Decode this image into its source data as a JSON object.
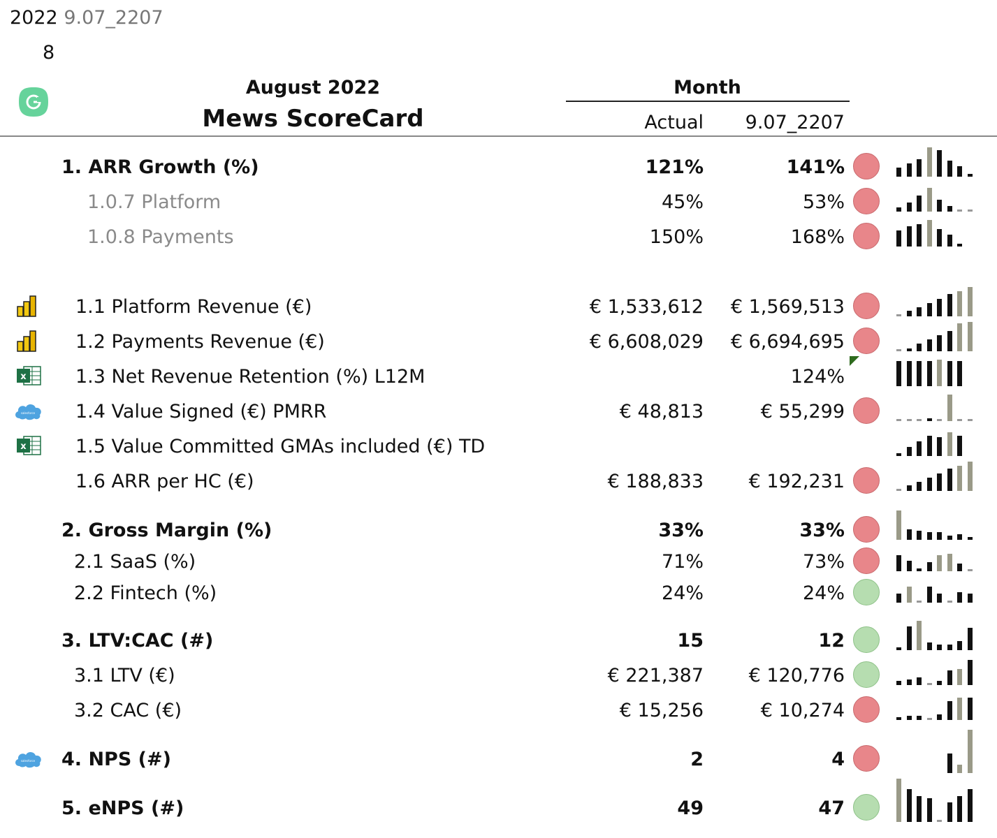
{
  "header": {
    "year": "2022",
    "version": "9.07_2207",
    "page_number": "8",
    "period": "August 2022",
    "title": "Mews ScoreCard",
    "group_label": "Month",
    "col_actual": "Actual",
    "col_version": "9.07_2207"
  },
  "colors": {
    "red_status": "#e8868a",
    "green_status": "#b6ddb0",
    "bar_dark": "#111111",
    "bar_highlight": "#9a9a88"
  },
  "rows": [
    {
      "label": "1. ARR Growth (%)",
      "actual": "121%",
      "target": "141%",
      "status": "red",
      "bold": true,
      "source": "",
      "spark": [
        0.3,
        0.45,
        0.6,
        1.0,
        0.9,
        0.55,
        0.35,
        0.1
      ],
      "hl": [
        3
      ]
    },
    {
      "label": "1.0.7 Platform",
      "actual": "45%",
      "target": "53%",
      "status": "red",
      "muted": true,
      "source": "",
      "spark": [
        0.15,
        0.3,
        0.55,
        0.8,
        0.4,
        0.2,
        0.05,
        0.05
      ],
      "hl": [
        3
      ]
    },
    {
      "label": "1.0.8 Payments",
      "actual": "150%",
      "target": "168%",
      "status": "red",
      "muted": true,
      "source": "",
      "spark": [
        0.55,
        0.7,
        0.75,
        0.9,
        0.6,
        0.4,
        0.1,
        0
      ],
      "hl": [
        3
      ]
    },
    {
      "label": "1.1 Platform Revenue (€)",
      "actual": "€ 1,533,612",
      "target": "€ 1,569,513",
      "status": "red",
      "source": "powerbi-icon",
      "spark": [
        0.05,
        0.2,
        0.3,
        0.45,
        0.6,
        0.75,
        0.85,
        1.0
      ],
      "hl": [
        6,
        7
      ]
    },
    {
      "label": "1.2 Payments Revenue (€)",
      "actual": "€ 6,608,029",
      "target": "€ 6,694,695",
      "status": "red",
      "source": "powerbi-icon",
      "spark": [
        0.05,
        0.1,
        0.25,
        0.4,
        0.55,
        0.7,
        0.95,
        1.0
      ],
      "hl": [
        6,
        7
      ]
    },
    {
      "label": "1.3 Net Revenue Retention (%) L12M",
      "actual": "",
      "target": "124%",
      "status": "none",
      "source": "excel-icon",
      "spark": [
        0.85,
        0.85,
        0.85,
        0.85,
        0.9,
        0.85,
        0.85,
        0
      ],
      "hl": [
        4
      ]
    },
    {
      "label": "1.4 Value Signed (€) PMRR",
      "actual": "€ 48,813",
      "target": "€ 55,299",
      "status": "red",
      "source": "salesforce-icon",
      "spark": [
        0.05,
        0.05,
        0.05,
        0.1,
        0.05,
        0.9,
        0.05,
        0.05
      ],
      "hl": [
        5
      ]
    },
    {
      "label": "1.5 Value Committed GMAs included (€) TD",
      "actual": "",
      "target": "",
      "status": "none",
      "source": "excel-icon",
      "spark": [
        0.1,
        0.3,
        0.5,
        0.7,
        0.65,
        0.8,
        0.7,
        0
      ],
      "hl": [
        5
      ]
    },
    {
      "label": "1.6  ARR per HC (€)",
      "actual": "€ 188,833",
      "target": "€ 192,231",
      "status": "red",
      "source": "",
      "spark": [
        0.05,
        0.2,
        0.3,
        0.45,
        0.6,
        0.75,
        0.85,
        1.0
      ],
      "hl": [
        6,
        7
      ]
    },
    {
      "label": "2. Gross Margin (%)",
      "actual": "33%",
      "target": "33%",
      "status": "red",
      "bold": true,
      "source": "",
      "spark": [
        1.0,
        0.35,
        0.3,
        0.25,
        0.25,
        0.15,
        0.2,
        0.1
      ],
      "hl": [
        0
      ]
    },
    {
      "label": "2.1 SaaS (%)",
      "actual": "71%",
      "target": "73%",
      "status": "red",
      "source": "",
      "spark": [
        0.55,
        0.35,
        0.1,
        0.3,
        0.55,
        0.6,
        0.25,
        0.05
      ],
      "hl": [
        4,
        5
      ]
    },
    {
      "label": "2.2 Fintech (%)",
      "actual": "24%",
      "target": "24%",
      "status": "green",
      "source": "",
      "spark": [
        0.3,
        0.55,
        0.05,
        0.55,
        0.3,
        0.05,
        0.35,
        0.3
      ],
      "hl": [
        1
      ]
    },
    {
      "label": "3. LTV:CAC (#)",
      "actual": "15",
      "target": "12",
      "status": "green",
      "bold": true,
      "source": "",
      "spark": [
        0.1,
        0.8,
        1.0,
        0.25,
        0.2,
        0.2,
        0.3,
        0.75
      ],
      "hl": [
        2
      ]
    },
    {
      "label": "3.1 LTV (€)",
      "actual": "€ 221,387",
      "target": "€ 120,776",
      "status": "green",
      "source": "",
      "spark": [
        0.15,
        0.2,
        0.25,
        0.05,
        0.15,
        0.5,
        0.55,
        0.85
      ],
      "hl": [
        6
      ]
    },
    {
      "label": "3.2 CAC (€)",
      "actual": "€ 15,256",
      "target": "€ 10,274",
      "status": "red",
      "source": "",
      "spark": [
        0.1,
        0.15,
        0.15,
        0.05,
        0.2,
        0.65,
        0.75,
        0.75
      ],
      "hl": [
        6
      ]
    },
    {
      "label": "4. NPS  (#)",
      "actual": "2",
      "target": "4",
      "status": "red",
      "bold": true,
      "source": "salesforce-icon",
      "spark": [
        0,
        0,
        0,
        0,
        0,
        0.45,
        0.2,
        1.0
      ],
      "hl": [
        6,
        7
      ]
    },
    {
      "label": "5. eNPS (#)",
      "actual": "49",
      "target": "47",
      "status": "green",
      "bold": true,
      "source": "",
      "spark": [
        1.0,
        0.75,
        0.6,
        0.55,
        0.05,
        0.45,
        0.6,
        0.75
      ],
      "hl": [
        0
      ]
    }
  ]
}
